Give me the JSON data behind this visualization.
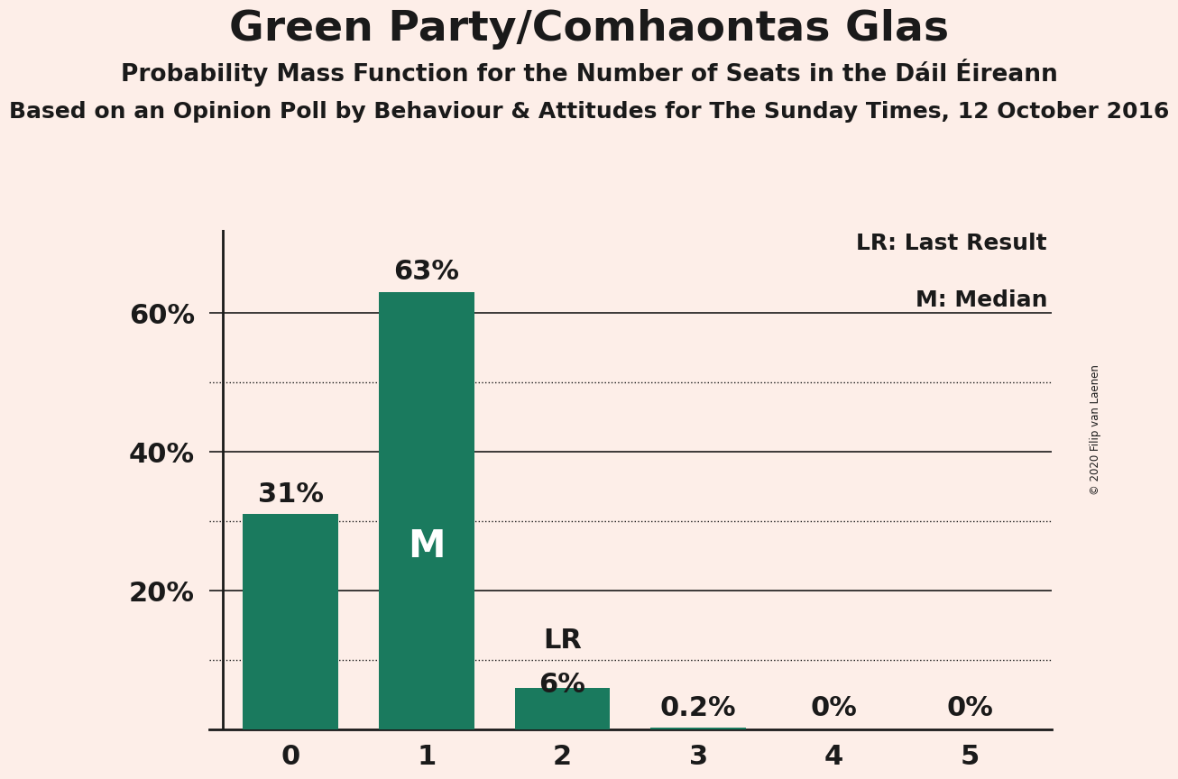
{
  "title": "Green Party/Comhaontas Glas",
  "subtitle": "Probability Mass Function for the Number of Seats in the Dáil Éireann",
  "sub2": "Based on an Opinion Poll by Behaviour & Attitudes for The Sunday Times, 12 October 2016",
  "copyright": "© 2020 Filip van Laenen",
  "categories": [
    0,
    1,
    2,
    3,
    4,
    5
  ],
  "values": [
    0.31,
    0.63,
    0.06,
    0.002,
    0.0,
    0.0
  ],
  "bar_color": "#1a7a5e",
  "bg_color": "#fdeee8",
  "text_color": "#1a1a1a",
  "bar_labels": [
    "31%",
    "63%",
    "6%",
    "0.2%",
    "0%",
    "0%"
  ],
  "median_bar": 1,
  "lr_bar": 2,
  "legend_lr": "LR: Last Result",
  "legend_m": "M: Median",
  "ytick_vals": [
    0.2,
    0.4,
    0.6
  ],
  "ytick_labels": [
    "20%",
    "40%",
    "60%"
  ],
  "ylim": [
    0,
    0.72
  ],
  "solid_lines": [
    0.2,
    0.4,
    0.6
  ],
  "dotted_lines": [
    0.1,
    0.3,
    0.5
  ],
  "title_fontsize": 34,
  "subtitle_fontsize": 19,
  "sub2_fontsize": 18,
  "label_fontsize": 22,
  "tick_fontsize": 22,
  "legend_fontsize": 18,
  "bar_width": 0.7
}
